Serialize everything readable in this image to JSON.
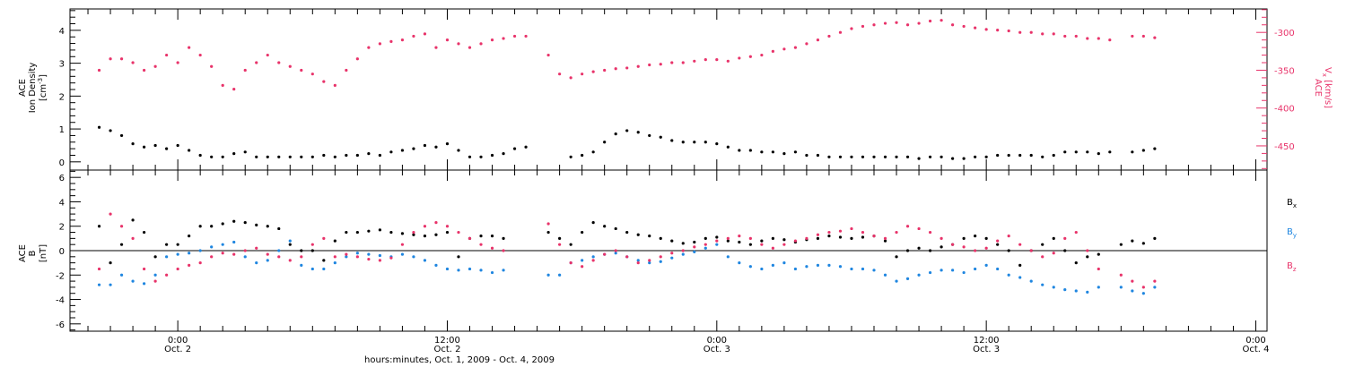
{
  "chart_data": [
    {
      "type": "scatter",
      "panel": "top",
      "left_axis_label": {
        "line1": "ACE",
        "line2": "Ion Density",
        "line3": "[cm",
        "sup": "-3",
        "tail": "]"
      },
      "right_axis_label": {
        "line1": "ACE",
        "line2a": "V",
        "sub": "x",
        "line2b": " [km/s]"
      },
      "ylim_left": [
        -0.25,
        4.65
      ],
      "ylim_right": [
        -482,
        -269
      ],
      "left_ticks": [
        "0",
        "1",
        "2",
        "3",
        "4"
      ],
      "right_ticks": [
        "-300",
        "-350",
        "-400",
        "-450"
      ],
      "grid": false,
      "series": [
        {
          "color": "#000000",
          "axis": "left",
          "x": [
            -3.5,
            -3,
            -2.5,
            -2,
            -1.5,
            -1,
            -0.5,
            0,
            0.5,
            1,
            1.5,
            2,
            2.5,
            3,
            3.5,
            4,
            4.5,
            5,
            5.5,
            6,
            6.5,
            7,
            7.5,
            8,
            8.5,
            9,
            9.5,
            10,
            10.5,
            11,
            11.5,
            12,
            12.5,
            13,
            13.5,
            14,
            14.5,
            15,
            15.5,
            16,
            16.5,
            17,
            17.5,
            18,
            18.5,
            19,
            19.5,
            20,
            20.5,
            21,
            21.5,
            22,
            22.5,
            23,
            23.5,
            24,
            24.5,
            25,
            25.5,
            26,
            26.5,
            27,
            27.5,
            28,
            28.5,
            29,
            29.5,
            30,
            30.5,
            31,
            31.5,
            32,
            32.5,
            33,
            33.5,
            34,
            34.5,
            35,
            35.5,
            36,
            36.5,
            37,
            37.5,
            38,
            38.5,
            39,
            39.5,
            40,
            40.5,
            41,
            41.5,
            42,
            42.5,
            43,
            43.5
          ],
          "y": [
            1.05,
            0.95,
            0.8,
            0.55,
            0.45,
            0.5,
            0.4,
            0.5,
            0.35,
            0.2,
            0.15,
            0.15,
            0.25,
            0.3,
            0.15,
            0.15,
            0.15,
            0.15,
            0.15,
            0.15,
            0.2,
            0.15,
            0.2,
            0.2,
            0.25,
            0.2,
            0.3,
            0.35,
            0.4,
            0.5,
            0.45,
            0.55,
            0.35,
            0.15,
            0.15,
            0.2,
            0.25,
            0.4,
            0.45,
            null,
            null,
            null,
            0.15,
            0.2,
            0.3,
            0.6,
            0.85,
            0.95,
            0.9,
            0.8,
            0.75,
            0.65,
            0.6,
            0.6,
            0.6,
            0.55,
            0.45,
            0.35,
            0.35,
            0.3,
            0.3,
            0.25,
            0.3,
            0.2,
            0.2,
            0.15,
            0.15,
            0.15,
            0.15,
            0.15,
            0.15,
            0.15,
            0.15,
            0.1,
            0.15,
            0.15,
            0.1,
            0.1,
            0.15,
            0.15,
            0.2,
            0.2,
            0.2,
            0.2,
            0.15,
            0.2,
            0.3,
            0.3,
            0.3,
            0.25,
            0.3,
            null,
            0.3,
            0.35,
            0.4
          ]
        },
        {
          "color": "#e8336a",
          "axis": "right",
          "x": [
            -3.5,
            -3,
            -2.5,
            -2,
            -1.5,
            -1,
            -0.5,
            0,
            0.5,
            1,
            1.5,
            2,
            2.5,
            3,
            3.5,
            4,
            4.5,
            5,
            5.5,
            6,
            6.5,
            7,
            7.5,
            8,
            8.5,
            9,
            9.5,
            10,
            10.5,
            11,
            11.5,
            12,
            12.5,
            13,
            13.5,
            14,
            14.5,
            15,
            15.5,
            16,
            16.5,
            17,
            17.5,
            18,
            18.5,
            19,
            19.5,
            20,
            20.5,
            21,
            21.5,
            22,
            22.5,
            23,
            23.5,
            24,
            24.5,
            25,
            25.5,
            26,
            26.5,
            27,
            27.5,
            28,
            28.5,
            29,
            29.5,
            30,
            30.5,
            31,
            31.5,
            32,
            32.5,
            33,
            33.5,
            34,
            34.5,
            35,
            35.5,
            36,
            36.5,
            37,
            37.5,
            38,
            38.5,
            39,
            39.5,
            40,
            40.5,
            41,
            41.5,
            42,
            42.5,
            43,
            43.5
          ],
          "y": [
            -350,
            -335,
            -335,
            -340,
            -350,
            -345,
            -330,
            -340,
            -320,
            -330,
            -345,
            -370,
            -375,
            -350,
            -340,
            -330,
            -340,
            -345,
            -350,
            -355,
            -365,
            -370,
            -350,
            -335,
            -320,
            -315,
            -312,
            -310,
            -305,
            -302,
            -320,
            -310,
            -315,
            -320,
            -315,
            -310,
            -308,
            -305,
            -305,
            null,
            -330,
            -355,
            -360,
            -355,
            -352,
            -350,
            -348,
            -347,
            -345,
            -343,
            -342,
            -340,
            -340,
            -338,
            -336,
            -336,
            -338,
            -334,
            -332,
            -330,
            -325,
            -322,
            -320,
            -315,
            -310,
            -305,
            -300,
            -295,
            -292,
            -290,
            -288,
            -287,
            -290,
            -288,
            -285,
            -284,
            -290,
            -292,
            -294,
            -296,
            -297,
            -298,
            -300,
            -300,
            -302,
            -302,
            -305,
            -305,
            -308,
            -308,
            -310,
            null,
            -305,
            -305,
            -307
          ]
        }
      ]
    },
    {
      "type": "scatter",
      "panel": "bottom",
      "left_axis_label": {
        "line1": "ACE",
        "line2": "B",
        "line3": "[nT]"
      },
      "ylim": [
        -6.6,
        6.6
      ],
      "ticks": [
        "-6",
        "-4",
        "-2",
        "0",
        "2",
        "4",
        "6"
      ],
      "zero_line": true,
      "grid": false,
      "x_axis": {
        "range_hours": [
          -4.8,
          48.5
        ],
        "major": [
          {
            "h": 0,
            "time": "0:00",
            "date": "Oct. 2"
          },
          {
            "h": 12,
            "time": "12:00",
            "date": "Oct. 2"
          },
          {
            "h": 24,
            "time": "0:00",
            "date": "Oct. 3"
          },
          {
            "h": 36,
            "time": "12:00",
            "date": "Oct. 3"
          },
          {
            "h": 48,
            "time": "0:00",
            "date": "Oct. 4"
          }
        ],
        "title": "hours:minutes, Oct.  1, 2009 - Oct.  4, 2009"
      },
      "series": [
        {
          "name_main": "B",
          "name_sub": "x",
          "color": "#000000",
          "x": [
            -3.5,
            -3,
            -2.5,
            -2,
            -1.5,
            -1,
            -0.5,
            0,
            0.5,
            1,
            1.5,
            2,
            2.5,
            3,
            3.5,
            4,
            4.5,
            5,
            5.5,
            6,
            6.5,
            7,
            7.5,
            8,
            8.5,
            9,
            9.5,
            10,
            10.5,
            11,
            11.5,
            12,
            12.5,
            13,
            13.5,
            14,
            14.5,
            15,
            15.5,
            16,
            16.5,
            17,
            17.5,
            18,
            18.5,
            19,
            19.5,
            20,
            20.5,
            21,
            21.5,
            22,
            22.5,
            23,
            23.5,
            24,
            24.5,
            25,
            25.5,
            26,
            26.5,
            27,
            27.5,
            28,
            28.5,
            29,
            29.5,
            30,
            30.5,
            31,
            31.5,
            32,
            32.5,
            33,
            33.5,
            34,
            34.5,
            35,
            35.5,
            36,
            36.5,
            37,
            37.5,
            38,
            38.5,
            39,
            39.5,
            40,
            40.5,
            41,
            41.5,
            42,
            42.5,
            43,
            43.5
          ],
          "y": [
            2.0,
            -1.0,
            0.5,
            2.5,
            1.5,
            -0.5,
            0.5,
            0.5,
            1.2,
            2.0,
            2.0,
            2.2,
            2.4,
            2.3,
            2.1,
            2.0,
            1.8,
            0.5,
            0.0,
            0.0,
            -0.8,
            0.8,
            1.5,
            1.5,
            1.6,
            1.7,
            1.5,
            1.4,
            1.3,
            1.2,
            1.3,
            1.5,
            -0.5,
            1.0,
            1.2,
            1.2,
            1.0,
            null,
            null,
            null,
            1.5,
            1.0,
            0.5,
            1.5,
            2.3,
            2.0,
            1.8,
            1.5,
            1.3,
            1.2,
            1.0,
            0.8,
            0.6,
            0.7,
            1.0,
            1.1,
            0.8,
            0.7,
            0.5,
            0.8,
            1.0,
            0.9,
            0.7,
            0.9,
            1.0,
            1.2,
            1.1,
            1.0,
            1.1,
            1.2,
            0.8,
            -0.5,
            0.0,
            0.2,
            0.0,
            0.3,
            0.5,
            1.0,
            1.2,
            1.0,
            0.5,
            0.0,
            -1.2,
            0.0,
            0.5,
            1.0,
            0.0,
            -1.0,
            -0.5,
            -0.3,
            null,
            0.5,
            0.8,
            0.6,
            1.0
          ]
        },
        {
          "name_main": "B",
          "name_sub": "y",
          "color": "#1f86e0",
          "x": [
            -3.5,
            -3,
            -2.5,
            -2,
            -1.5,
            -1,
            -0.5,
            0,
            0.5,
            1,
            1.5,
            2,
            2.5,
            3,
            3.5,
            4,
            4.5,
            5,
            5.5,
            6,
            6.5,
            7,
            7.5,
            8,
            8.5,
            9,
            9.5,
            10,
            10.5,
            11,
            11.5,
            12,
            12.5,
            13,
            13.5,
            14,
            14.5,
            15,
            15.5,
            16,
            16.5,
            17,
            17.5,
            18,
            18.5,
            19,
            19.5,
            20,
            20.5,
            21,
            21.5,
            22,
            22.5,
            23,
            23.5,
            24,
            24.5,
            25,
            25.5,
            26,
            26.5,
            27,
            27.5,
            28,
            28.5,
            29,
            29.5,
            30,
            30.5,
            31,
            31.5,
            32,
            32.5,
            33,
            33.5,
            34,
            34.5,
            35,
            35.5,
            36,
            36.5,
            37,
            37.5,
            38,
            38.5,
            39,
            39.5,
            40,
            40.5,
            41,
            41.5,
            42,
            42.5,
            43,
            43.5
          ],
          "y": [
            -2.8,
            -2.8,
            -2.0,
            -2.5,
            -2.7,
            -2.0,
            -0.5,
            -0.3,
            -0.2,
            0.0,
            0.3,
            0.5,
            0.7,
            -0.5,
            -1.0,
            -0.8,
            0.0,
            0.8,
            -1.2,
            -1.5,
            -1.5,
            -1.0,
            -0.5,
            -0.2,
            -0.3,
            -0.4,
            -0.5,
            -0.3,
            -0.5,
            -0.8,
            -1.2,
            -1.5,
            -1.6,
            -1.5,
            -1.6,
            -1.8,
            -1.6,
            null,
            null,
            null,
            -2.0,
            -2.0,
            -1.0,
            -0.8,
            -0.5,
            -0.3,
            -0.2,
            -0.5,
            -0.8,
            -1.0,
            -0.9,
            -0.6,
            -0.3,
            -0.1,
            0.2,
            0.5,
            -0.5,
            -1.0,
            -1.3,
            -1.5,
            -1.2,
            -1.0,
            -1.5,
            -1.3,
            -1.2,
            -1.2,
            -1.3,
            -1.5,
            -1.5,
            -1.6,
            -2.0,
            -2.5,
            -2.3,
            -2.0,
            -1.8,
            -1.6,
            -1.6,
            -1.8,
            -1.5,
            -1.2,
            -1.5,
            -2.0,
            -2.2,
            -2.5,
            -2.8,
            -3.0,
            -3.2,
            -3.3,
            -3.4,
            -3.0,
            null,
            -3.0,
            -3.3,
            -3.5,
            -3.0
          ]
        },
        {
          "name_main": "B",
          "name_sub": "z",
          "color": "#e8336a",
          "x": [
            -3.5,
            -3,
            -2.5,
            -2,
            -1.5,
            -1,
            -0.5,
            0,
            0.5,
            1,
            1.5,
            2,
            2.5,
            3,
            3.5,
            4,
            4.5,
            5,
            5.5,
            6,
            6.5,
            7,
            7.5,
            8,
            8.5,
            9,
            9.5,
            10,
            10.5,
            11,
            11.5,
            12,
            12.5,
            13,
            13.5,
            14,
            14.5,
            15,
            15.5,
            16,
            16.5,
            17,
            17.5,
            18,
            18.5,
            19,
            19.5,
            20,
            20.5,
            21,
            21.5,
            22,
            22.5,
            23,
            23.5,
            24,
            24.5,
            25,
            25.5,
            26,
            26.5,
            27,
            27.5,
            28,
            28.5,
            29,
            29.5,
            30,
            30.5,
            31,
            31.5,
            32,
            32.5,
            33,
            33.5,
            34,
            34.5,
            35,
            35.5,
            36,
            36.5,
            37,
            37.5,
            38,
            38.5,
            39,
            39.5,
            40,
            40.5,
            41,
            41.5,
            42,
            42.5,
            43,
            43.5
          ],
          "y": [
            -1.5,
            3.0,
            2.0,
            1.0,
            -1.5,
            -2.5,
            -2.0,
            -1.5,
            -1.2,
            -1.0,
            -0.5,
            -0.2,
            -0.3,
            0.0,
            0.2,
            -0.3,
            -0.5,
            -0.8,
            -0.5,
            0.5,
            1.0,
            -0.5,
            -0.3,
            -0.5,
            -0.7,
            -0.8,
            -0.6,
            0.5,
            1.5,
            2.0,
            2.3,
            2.0,
            1.5,
            1.0,
            0.5,
            0.2,
            0.0,
            null,
            null,
            null,
            2.2,
            0.5,
            -1.0,
            -1.3,
            -0.8,
            -0.3,
            0.0,
            -0.5,
            -1.0,
            -0.8,
            -0.5,
            -0.2,
            0.0,
            0.3,
            0.5,
            0.8,
            1.0,
            1.2,
            1.0,
            0.5,
            0.2,
            0.5,
            0.8,
            1.0,
            1.3,
            1.5,
            1.6,
            1.8,
            1.5,
            1.2,
            1.0,
            1.5,
            2.0,
            1.8,
            1.5,
            1.0,
            0.5,
            0.3,
            0.0,
            0.2,
            0.8,
            1.2,
            0.5,
            0.0,
            -0.5,
            -0.2,
            1.0,
            1.5,
            0.0,
            -1.5,
            null,
            -2.0,
            -2.5,
            -3.0,
            -2.5
          ]
        }
      ]
    }
  ]
}
